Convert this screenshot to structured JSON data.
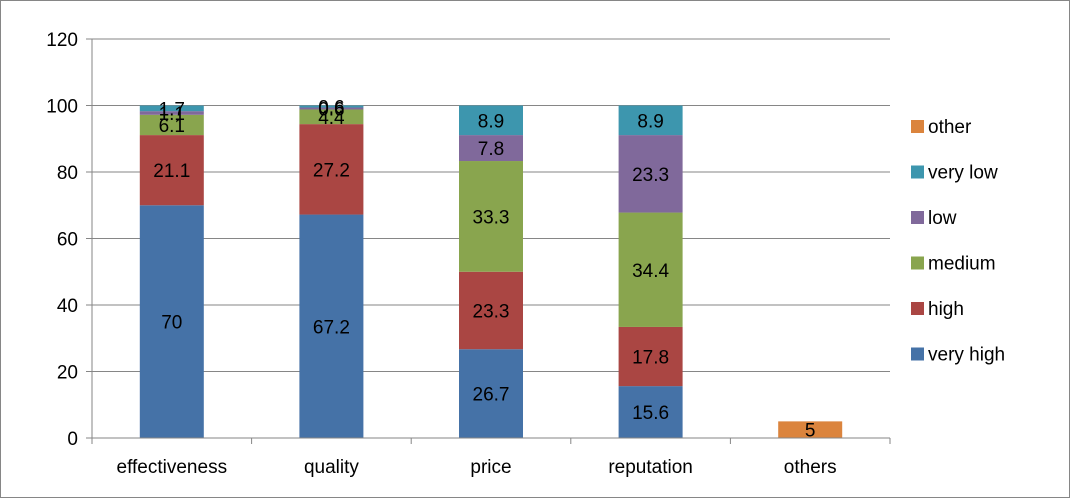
{
  "chart_data": {
    "type": "bar",
    "stacked": true,
    "categories": [
      "effectiveness",
      "quality",
      "price",
      "reputation",
      "others"
    ],
    "series": [
      {
        "name": "very high",
        "color": "#4572A7",
        "values": [
          70,
          67.2,
          26.7,
          15.6,
          null
        ],
        "labels": [
          "70",
          "67.2",
          "26.7",
          "15.6",
          ""
        ]
      },
      {
        "name": "high",
        "color": "#AA4643",
        "values": [
          21.1,
          27.2,
          23.3,
          17.8,
          null
        ],
        "labels": [
          "21.1",
          "27.2",
          "23.3",
          "17.8",
          ""
        ]
      },
      {
        "name": "medium",
        "color": "#89A54E",
        "values": [
          6.1,
          4.4,
          33.3,
          34.4,
          null
        ],
        "labels": [
          "6.1",
          "4.4",
          "33.3",
          "34.4",
          ""
        ]
      },
      {
        "name": "low",
        "color": "#80699B",
        "values": [
          1.1,
          0.6,
          7.8,
          23.3,
          null
        ],
        "labels": [
          "1.1",
          "0.6",
          "7.8",
          "23.3",
          ""
        ]
      },
      {
        "name": "very low",
        "color": "#3D96AE",
        "values": [
          1.7,
          0.6,
          8.9,
          8.9,
          null
        ],
        "labels": [
          "1.7",
          "0.6",
          "8.9",
          "8.9",
          ""
        ]
      },
      {
        "name": "other",
        "color": "#DB843D",
        "values": [
          null,
          null,
          null,
          null,
          5
        ],
        "labels": [
          "",
          "",
          "",
          "",
          "5"
        ]
      }
    ],
    "ylim": [
      0,
      120
    ],
    "yticks": [
      "0",
      "20",
      "40",
      "60",
      "80",
      "100",
      "120"
    ],
    "grid": true,
    "legend": "right",
    "title": "",
    "xlabel": "",
    "ylabel": ""
  }
}
